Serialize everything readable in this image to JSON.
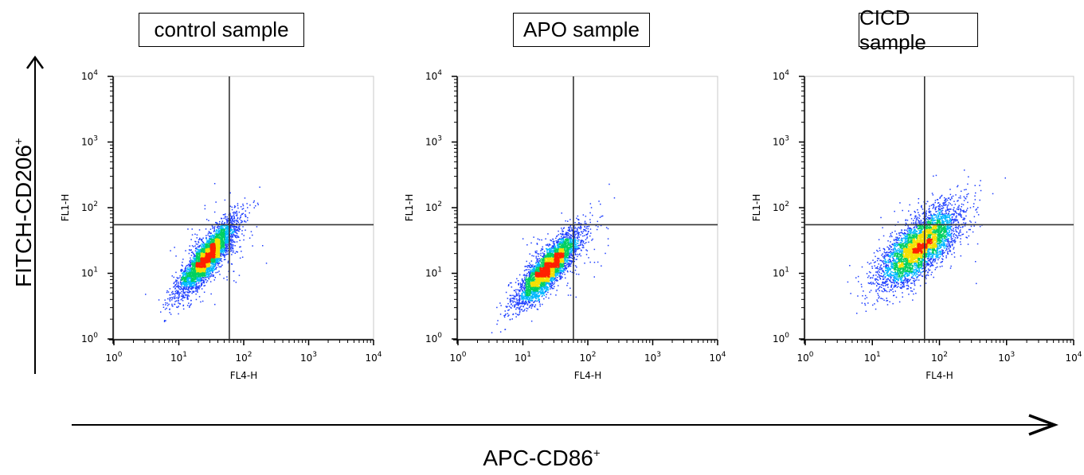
{
  "figure": {
    "y_axis_label": "FITCH-CD206",
    "y_axis_label_sup": "+",
    "x_axis_label": "APC-CD86",
    "x_axis_label_sup": "+"
  },
  "chart_data": [
    {
      "type": "scatter",
      "title": "control sample",
      "xlabel": "FL4-H",
      "ylabel": "FL1-H",
      "xscale": "log",
      "yscale": "log",
      "xlim": [
        1,
        10000
      ],
      "ylim": [
        1,
        10000
      ],
      "x_ticks": [
        "10^0",
        "10^1",
        "10^2",
        "10^3",
        "10^4"
      ],
      "y_ticks": [
        "10^0",
        "10^1",
        "10^2",
        "10^3",
        "10^4"
      ],
      "quadrant_gate": {
        "x": 60,
        "y": 55
      },
      "population": {
        "center_x": 28,
        "center_y": 18,
        "log_spread_x": 0.22,
        "log_spread_y": 0.28,
        "correlation": 0.85,
        "events": 4000
      },
      "density_colors": [
        "#1f3fff",
        "#00b8ff",
        "#00d060",
        "#f5e000",
        "#ff2000"
      ]
    },
    {
      "type": "scatter",
      "title": "APO sample",
      "xlabel": "FL4-H",
      "ylabel": "FL1-H",
      "xscale": "log",
      "yscale": "log",
      "xlim": [
        1,
        10000
      ],
      "ylim": [
        1,
        10000
      ],
      "x_ticks": [
        "10^0",
        "10^1",
        "10^2",
        "10^3",
        "10^4"
      ],
      "y_ticks": [
        "10^0",
        "10^1",
        "10^2",
        "10^3",
        "10^4"
      ],
      "quadrant_gate": {
        "x": 60,
        "y": 55
      },
      "population": {
        "center_x": 25,
        "center_y": 12,
        "log_spread_x": 0.24,
        "log_spread_y": 0.28,
        "correlation": 0.85,
        "events": 4000
      },
      "density_colors": [
        "#1f3fff",
        "#00b8ff",
        "#00d060",
        "#f5e000",
        "#ff2000"
      ]
    },
    {
      "type": "scatter",
      "title": "CICD sample",
      "xlabel": "FL4-H",
      "ylabel": "FL1-H",
      "xscale": "log",
      "yscale": "log",
      "xlim": [
        1,
        10000
      ],
      "ylim": [
        1,
        10000
      ],
      "x_ticks": [
        "10^0",
        "10^1",
        "10^2",
        "10^3",
        "10^4"
      ],
      "y_ticks": [
        "10^0",
        "10^1",
        "10^2",
        "10^3",
        "10^4"
      ],
      "quadrant_gate": {
        "x": 60,
        "y": 55
      },
      "population": {
        "center_x": 50,
        "center_y": 25,
        "log_spread_x": 0.3,
        "log_spread_y": 0.3,
        "correlation": 0.7,
        "events": 4200
      },
      "density_colors": [
        "#1f3fff",
        "#00b8ff",
        "#00d060",
        "#f5e000",
        "#ff2000"
      ]
    }
  ]
}
